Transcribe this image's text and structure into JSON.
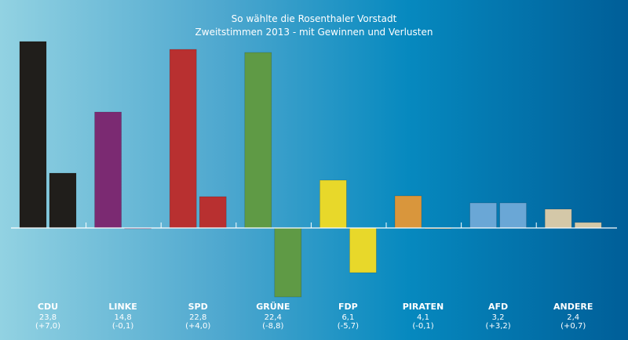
{
  "chart_data": {
    "type": "bar",
    "title": "So wählte die Rosenthaler Vorstadt",
    "subtitle": "Zweitstimmen 2013 - mit Gewinnen und Verlusten",
    "xlabel": "",
    "ylabel": "",
    "ylim": [
      -9,
      24
    ],
    "grid": false,
    "legend": "none",
    "categories": [
      "CDU",
      "LINKE",
      "SPD",
      "GRÜNE",
      "FDP",
      "PIRATEN",
      "AFD",
      "ANDERE"
    ],
    "series": [
      {
        "name": "Zweitstimmen 2013",
        "values": [
          23.8,
          14.8,
          22.8,
          22.4,
          6.1,
          4.1,
          3.2,
          2.4
        ]
      },
      {
        "name": "Gewinne/Verluste",
        "values": [
          7.0,
          -0.1,
          4.0,
          -8.8,
          -5.7,
          -0.1,
          3.2,
          0.7
        ]
      }
    ],
    "value_labels": [
      "23,8",
      "14,8",
      "22,8",
      "22,4",
      "6,1",
      "4,1",
      "3,2",
      "2,4"
    ],
    "change_labels": [
      "(+7,0)",
      "(-0,1)",
      "(+4,0)",
      "(-8,8)",
      "(-5,7)",
      "(-0,1)",
      "(+3,2)",
      "(+0,7)"
    ],
    "colors": [
      "#201e1b",
      "#7b2a72",
      "#b83030",
      "#5f9a45",
      "#e8d82a",
      "#d9963c",
      "#6aa7d6",
      "#d4c8a8"
    ]
  }
}
